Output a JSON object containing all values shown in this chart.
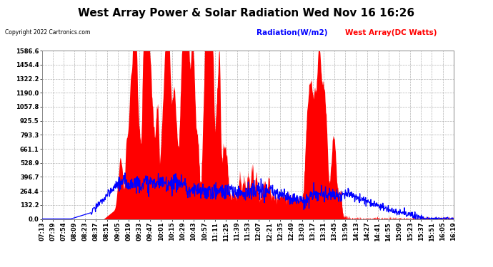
{
  "title": "West Array Power & Solar Radiation Wed Nov 16 16:26",
  "copyright_text": "Copyright 2022 Cartronics.com",
  "legend_radiation": "Radiation(W/m2)",
  "legend_west": "West Array(DC Watts)",
  "ymax": 1586.6,
  "ymin": 0.0,
  "yticks": [
    0.0,
    132.2,
    264.4,
    396.7,
    528.9,
    661.1,
    793.3,
    925.5,
    1057.8,
    1190.0,
    1322.2,
    1454.4,
    1586.6
  ],
  "radiation_color": "blue",
  "west_color": "red",
  "background_color": "#ffffff",
  "grid_color": "#aaaaaa",
  "title_fontsize": 11,
  "tick_fontsize": 6,
  "x_labels": [
    "07:13",
    "07:39",
    "07:54",
    "08:09",
    "08:23",
    "08:37",
    "08:51",
    "09:05",
    "09:19",
    "09:33",
    "09:47",
    "10:01",
    "10:15",
    "10:29",
    "10:43",
    "10:57",
    "11:11",
    "11:25",
    "11:39",
    "11:53",
    "12:07",
    "12:21",
    "12:35",
    "12:49",
    "13:03",
    "13:17",
    "13:31",
    "13:45",
    "13:59",
    "14:13",
    "14:27",
    "14:41",
    "14:55",
    "15:09",
    "15:23",
    "15:37",
    "15:51",
    "16:05",
    "16:19"
  ]
}
